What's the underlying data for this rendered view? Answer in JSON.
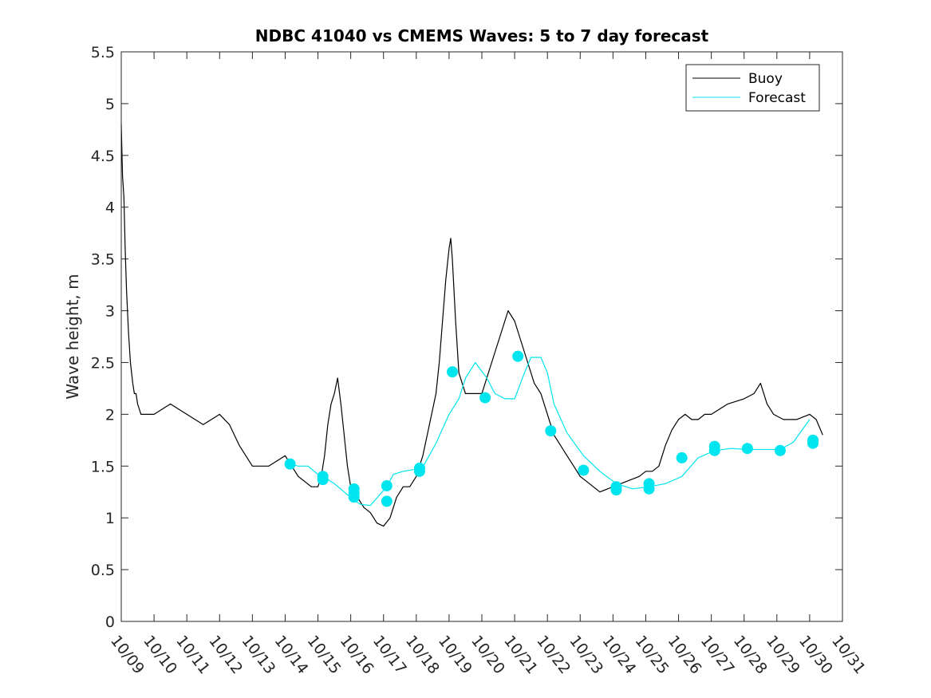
{
  "chart_data": {
    "type": "line",
    "title": "NDBC 41040 vs CMEMS Waves: 5 to 7 day forecast",
    "xlabel": "",
    "ylabel": "Wave height, m",
    "xlim": [
      0,
      22
    ],
    "ylim": [
      0,
      5.5
    ],
    "yticks": [
      0,
      0.5,
      1,
      1.5,
      2,
      2.5,
      3,
      3.5,
      4,
      4.5,
      5,
      5.5
    ],
    "ytick_labels": [
      "0",
      "0.5",
      "1",
      "1.5",
      "2",
      "2.5",
      "3",
      "3.5",
      "4",
      "4.5",
      "5",
      "5.5"
    ],
    "xtick_labels": [
      "10/09",
      "10/10",
      "10/11",
      "10/12",
      "10/13",
      "10/14",
      "10/15",
      "10/16",
      "10/17",
      "10/18",
      "10/19",
      "10/20",
      "10/21",
      "10/22",
      "10/23",
      "10/24",
      "10/25",
      "10/26",
      "10/27",
      "10/28",
      "10/29",
      "10/30",
      "10/31"
    ],
    "legend_position": "top-right",
    "colors": {
      "buoy": "#000000",
      "forecast": "#00e5ee",
      "axes": "#262626"
    },
    "series": [
      {
        "name": "Buoy",
        "x": [
          0,
          0.04,
          0.08,
          0.12,
          0.16,
          0.22,
          0.28,
          0.35,
          0.4,
          0.45,
          0.5,
          0.6,
          0.8,
          1.0,
          1.5,
          2.0,
          2.5,
          3.0,
          3.3,
          3.6,
          4.0,
          4.5,
          5.0,
          5.4,
          5.8,
          6.0,
          6.1,
          6.2,
          6.3,
          6.4,
          6.5,
          6.6,
          6.7,
          6.8,
          6.9,
          7.0,
          7.2,
          7.4,
          7.6,
          7.8,
          8.0,
          8.2,
          8.4,
          8.6,
          8.8,
          9.0,
          9.2,
          9.4,
          9.6,
          9.7,
          9.8,
          9.9,
          10.0,
          10.05,
          10.1,
          10.2,
          10.3,
          10.5,
          10.8,
          11.0,
          11.3,
          11.6,
          11.8,
          12.0,
          12.2,
          12.4,
          12.6,
          12.8,
          13.0,
          13.2,
          13.4,
          13.6,
          13.8,
          14.0,
          14.2,
          14.4,
          14.6,
          15.0,
          15.4,
          15.8,
          16.0,
          16.2,
          16.4,
          16.6,
          16.8,
          17.0,
          17.2,
          17.4,
          17.6,
          17.8,
          18.0,
          18.5,
          19.0,
          19.3,
          19.5,
          19.7,
          19.9,
          20.2,
          20.6,
          21.0,
          21.2,
          21.4
        ],
        "values": [
          4.8,
          4.3,
          4.1,
          3.6,
          3.2,
          2.8,
          2.5,
          2.3,
          2.2,
          2.2,
          2.1,
          2.0,
          2.0,
          2.0,
          2.1,
          2.0,
          1.9,
          2.0,
          1.9,
          1.7,
          1.5,
          1.5,
          1.6,
          1.4,
          1.3,
          1.3,
          1.4,
          1.6,
          1.9,
          2.1,
          2.2,
          2.35,
          2.1,
          1.8,
          1.5,
          1.3,
          1.2,
          1.1,
          1.05,
          0.95,
          0.92,
          1.0,
          1.2,
          1.3,
          1.3,
          1.4,
          1.6,
          1.9,
          2.2,
          2.5,
          2.9,
          3.3,
          3.6,
          3.7,
          3.5,
          2.9,
          2.4,
          2.2,
          2.2,
          2.2,
          2.5,
          2.8,
          3.0,
          2.9,
          2.7,
          2.5,
          2.3,
          2.2,
          2.0,
          1.8,
          1.7,
          1.6,
          1.5,
          1.4,
          1.35,
          1.3,
          1.25,
          1.3,
          1.35,
          1.4,
          1.45,
          1.45,
          1.5,
          1.7,
          1.85,
          1.95,
          2.0,
          1.95,
          1.95,
          2.0,
          2.0,
          2.1,
          2.15,
          2.2,
          2.3,
          2.1,
          2.0,
          1.95,
          1.95,
          2.0,
          1.95,
          1.8
        ]
      },
      {
        "name": "Forecast",
        "x": [
          5.15,
          5.4,
          5.7,
          6.0,
          6.15,
          6.5,
          6.8,
          7.1,
          7.3,
          7.6,
          8.1,
          8.3,
          8.6,
          9.0,
          9.2,
          9.6,
          10.0,
          10.3,
          10.5,
          10.8,
          11.15,
          11.4,
          11.7,
          12.0,
          12.3,
          12.5,
          12.8,
          13.0,
          13.2,
          13.6,
          14.1,
          14.6,
          15.1,
          15.6,
          16.1,
          16.6,
          17.1,
          17.6,
          18.1,
          18.6,
          19.1,
          19.6,
          20.1,
          20.5,
          21.0
        ],
        "values": [
          1.52,
          1.5,
          1.5,
          1.42,
          1.4,
          1.33,
          1.25,
          1.17,
          1.13,
          1.12,
          1.3,
          1.42,
          1.45,
          1.47,
          1.49,
          1.72,
          2.0,
          2.15,
          2.35,
          2.5,
          2.35,
          2.2,
          2.15,
          2.15,
          2.4,
          2.55,
          2.55,
          2.4,
          2.1,
          1.82,
          1.6,
          1.45,
          1.33,
          1.28,
          1.3,
          1.33,
          1.4,
          1.58,
          1.65,
          1.67,
          1.66,
          1.66,
          1.66,
          1.73,
          1.95
        ]
      }
    ],
    "forecast_markers": [
      {
        "x": 5.15,
        "y": 1.52
      },
      {
        "x": 6.15,
        "y": 1.4
      },
      {
        "x": 6.15,
        "y": 1.37
      },
      {
        "x": 7.1,
        "y": 1.28
      },
      {
        "x": 7.1,
        "y": 1.24
      },
      {
        "x": 7.1,
        "y": 1.2
      },
      {
        "x": 8.1,
        "y": 1.31
      },
      {
        "x": 8.1,
        "y": 1.16
      },
      {
        "x": 9.1,
        "y": 1.48
      },
      {
        "x": 9.1,
        "y": 1.45
      },
      {
        "x": 10.1,
        "y": 2.41
      },
      {
        "x": 11.1,
        "y": 2.16
      },
      {
        "x": 12.1,
        "y": 2.56
      },
      {
        "x": 13.1,
        "y": 1.84
      },
      {
        "x": 14.1,
        "y": 1.46
      },
      {
        "x": 15.1,
        "y": 1.3
      },
      {
        "x": 15.1,
        "y": 1.27
      },
      {
        "x": 16.1,
        "y": 1.33
      },
      {
        "x": 16.1,
        "y": 1.28
      },
      {
        "x": 17.1,
        "y": 1.58
      },
      {
        "x": 18.1,
        "y": 1.69
      },
      {
        "x": 18.1,
        "y": 1.65
      },
      {
        "x": 19.1,
        "y": 1.67
      },
      {
        "x": 20.1,
        "y": 1.65
      },
      {
        "x": 21.1,
        "y": 1.75
      },
      {
        "x": 21.1,
        "y": 1.72
      }
    ]
  }
}
